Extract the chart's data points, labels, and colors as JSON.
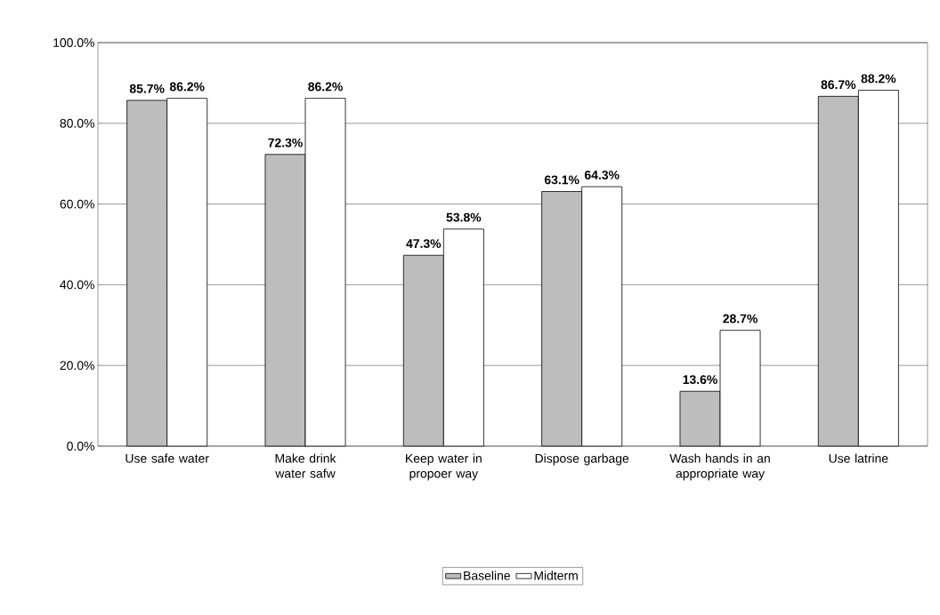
{
  "chart_data": {
    "type": "bar",
    "categories": [
      "Use safe water",
      "Make drink water safw",
      "Keep water in propoer way",
      "Dispose garbage",
      "Wash hands in an appropriate way",
      "Use latrine"
    ],
    "series": [
      {
        "name": "Baseline",
        "color": "#bdbdbd",
        "values": [
          85.7,
          72.3,
          47.3,
          63.1,
          13.6,
          86.7
        ],
        "value_labels": [
          "85.7%",
          "72.3%",
          "47.3%",
          "63.1%",
          "13.6%",
          "86.7%"
        ]
      },
      {
        "name": "Midterm",
        "color": "#ffffff",
        "values": [
          86.2,
          86.2,
          53.8,
          64.3,
          28.7,
          88.2
        ],
        "value_labels": [
          "86.2%",
          "86.2%",
          "53.8%",
          "64.3%",
          "28.7%",
          "88.2%"
        ]
      }
    ],
    "ylim": [
      0,
      100
    ],
    "yticks": [
      {
        "value": 0,
        "label": "0.0%"
      },
      {
        "value": 20,
        "label": "20.0%"
      },
      {
        "value": 40,
        "label": "40.0%"
      },
      {
        "value": 60,
        "label": "60.0%"
      },
      {
        "value": 80,
        "label": "80.0%"
      },
      {
        "value": 100,
        "label": "100.0%"
      }
    ],
    "grid": "y",
    "legend": "bottom"
  }
}
